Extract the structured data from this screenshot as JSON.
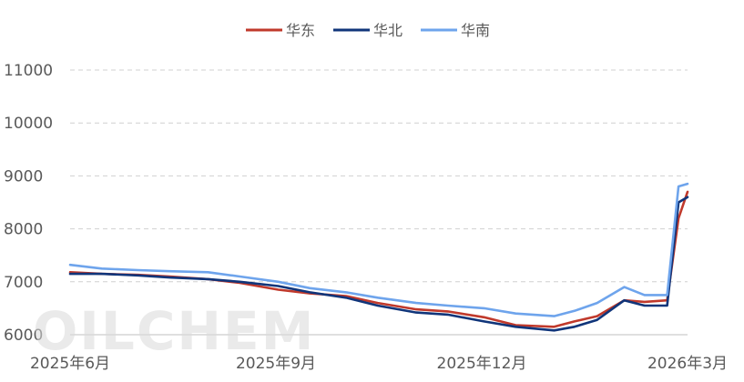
{
  "watermark": "OILCHEM",
  "chart_data": {
    "type": "line",
    "title": "",
    "xlabel": "",
    "ylabel": "",
    "ylim": [
      6000,
      11000
    ],
    "yticks": [
      6000,
      7000,
      8000,
      9000,
      10000,
      11000
    ],
    "xticks": [
      "2025年6月",
      "2025年9月",
      "2025年12月",
      "2026年3月"
    ],
    "grid": "horizontal dashed",
    "legend_position": "top-center",
    "x": [
      "2025-06-01",
      "2025-06-15",
      "2025-07-01",
      "2025-07-15",
      "2025-08-01",
      "2025-08-15",
      "2025-09-01",
      "2025-09-15",
      "2025-10-01",
      "2025-10-15",
      "2025-11-01",
      "2025-11-15",
      "2025-12-01",
      "2025-12-15",
      "2026-01-01",
      "2026-01-10",
      "2026-01-20",
      "2026-02-01",
      "2026-02-10",
      "2026-02-20",
      "2026-02-25",
      "2026-03-01"
    ],
    "series": [
      {
        "name": "华东",
        "color": "#c0392b",
        "values": [
          7180,
          7150,
          7130,
          7100,
          7050,
          6980,
          6850,
          6780,
          6730,
          6600,
          6480,
          6440,
          6330,
          6180,
          6150,
          6250,
          6350,
          6650,
          6620,
          6650,
          8200,
          8700
        ]
      },
      {
        "name": "华北",
        "color": "#10357a",
        "values": [
          7150,
          7150,
          7120,
          7080,
          7050,
          7000,
          6920,
          6800,
          6700,
          6550,
          6420,
          6380,
          6250,
          6150,
          6080,
          6150,
          6280,
          6650,
          6550,
          6550,
          8500,
          8600
        ]
      },
      {
        "name": "华南",
        "color": "#6ea4ec",
        "values": [
          7320,
          7250,
          7220,
          7200,
          7180,
          7100,
          7000,
          6880,
          6800,
          6700,
          6600,
          6550,
          6500,
          6400,
          6350,
          6450,
          6600,
          6900,
          6750,
          6750,
          8800,
          8850
        ]
      }
    ]
  }
}
